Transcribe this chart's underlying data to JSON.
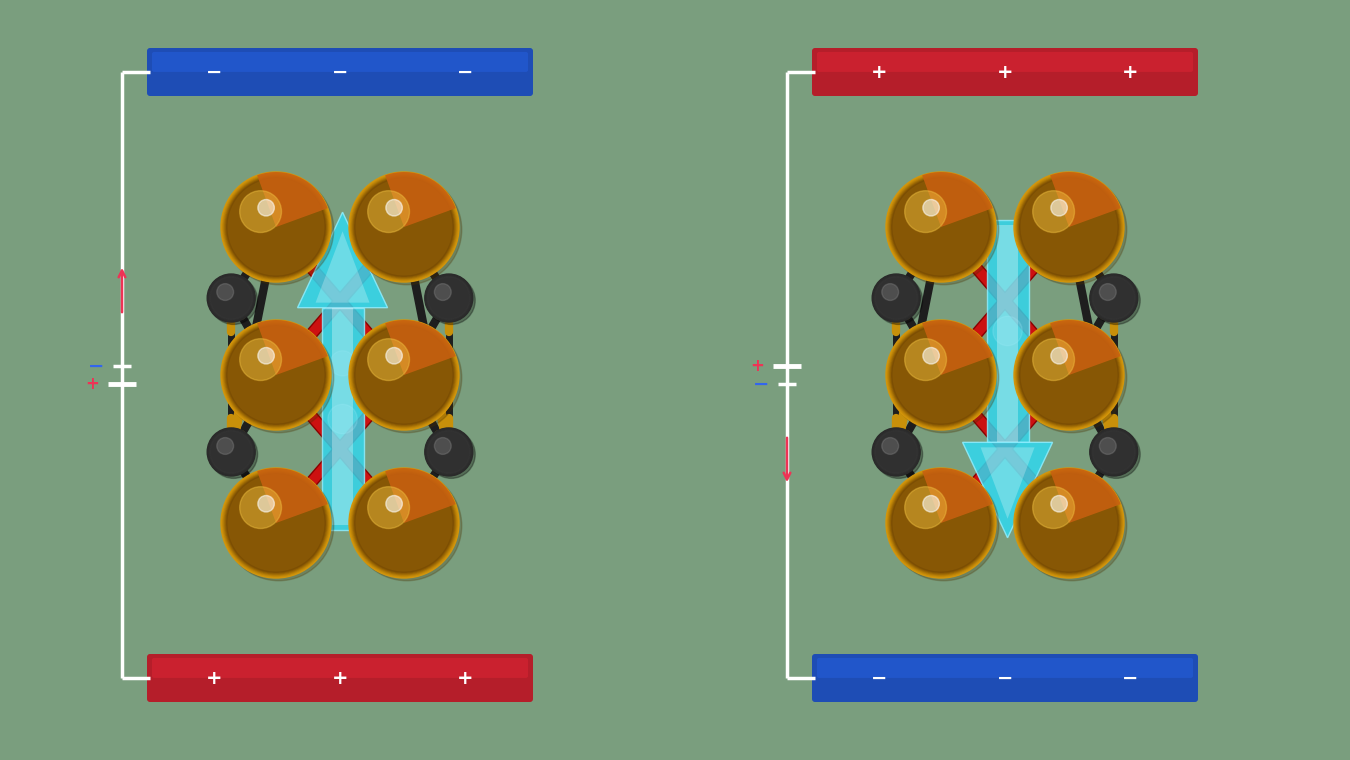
{
  "bg_color": "#7a9e7e",
  "electrode_color_blue": "#1e4db5",
  "electrode_color_red": "#b51e2a",
  "gold_color": "#d4960c",
  "gold_light": "#f0c040",
  "gold_dark": "#9a6a00",
  "orange_color": "#c86010",
  "dark_color": "#2a2a2a",
  "dark_mid": "#4a4a4a",
  "red_bond": "#8a0000",
  "red_bond_bright": "#cc1111",
  "gold_bond": "#c8900a",
  "dark_bond": "#1e1e1e",
  "cyan_color": "#30d8f0",
  "cyan_light": "#90eeff",
  "wire_color": "#ffffff",
  "plus_color": "#ee3355",
  "minus_color": "#3366ee"
}
